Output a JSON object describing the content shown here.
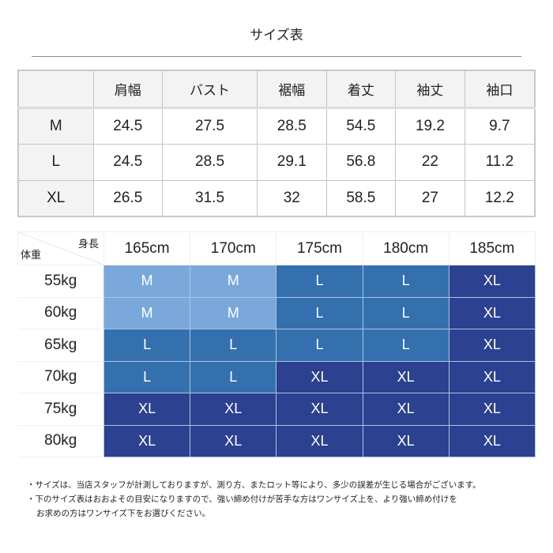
{
  "title": "サイズ表",
  "spec_table": {
    "headers": [
      "",
      "肩幅",
      "バスト",
      "裾幅",
      "着丈",
      "袖丈",
      "袖口"
    ],
    "rows": [
      {
        "size": "M",
        "values": [
          "24.5",
          "27.5",
          "28.5",
          "54.5",
          "19.2",
          "9.7"
        ]
      },
      {
        "size": "L",
        "values": [
          "24.5",
          "28.5",
          "29.1",
          "56.8",
          "22",
          "11.2"
        ]
      },
      {
        "size": "XL",
        "values": [
          "26.5",
          "31.5",
          "32",
          "58.5",
          "27",
          "12.2"
        ]
      }
    ]
  },
  "fit_table": {
    "corner_height_label": "身長",
    "corner_weight_label": "体重",
    "heights": [
      "165cm",
      "170cm",
      "175cm",
      "180cm",
      "185cm"
    ],
    "rows": [
      {
        "weight": "55kg",
        "sizes": [
          "M",
          "M",
          "L",
          "L",
          "XL"
        ]
      },
      {
        "weight": "60kg",
        "sizes": [
          "M",
          "M",
          "L",
          "L",
          "XL"
        ]
      },
      {
        "weight": "65kg",
        "sizes": [
          "L",
          "L",
          "L",
          "L",
          "XL"
        ]
      },
      {
        "weight": "70kg",
        "sizes": [
          "L",
          "L",
          "XL",
          "XL",
          "XL"
        ]
      },
      {
        "weight": "75kg",
        "sizes": [
          "XL",
          "XL",
          "XL",
          "XL",
          "XL"
        ]
      },
      {
        "weight": "80kg",
        "sizes": [
          "XL",
          "XL",
          "XL",
          "XL",
          "XL"
        ]
      }
    ],
    "colors": {
      "M": "#7aa8da",
      "L": "#3570ae",
      "XL": "#2c418f"
    }
  },
  "notes": [
    "・サイズは、当店スタッフが計測しておりますが、測り方、またロット等により、多少の誤差が生じる場合がございます。",
    "・下のサイズ表はおおよその目安になりますので、強い締め付けが苦手な方はワンサイズ上を、より強い締め付けを",
    "お求めの方はワンサイズ下をお選びください。"
  ]
}
